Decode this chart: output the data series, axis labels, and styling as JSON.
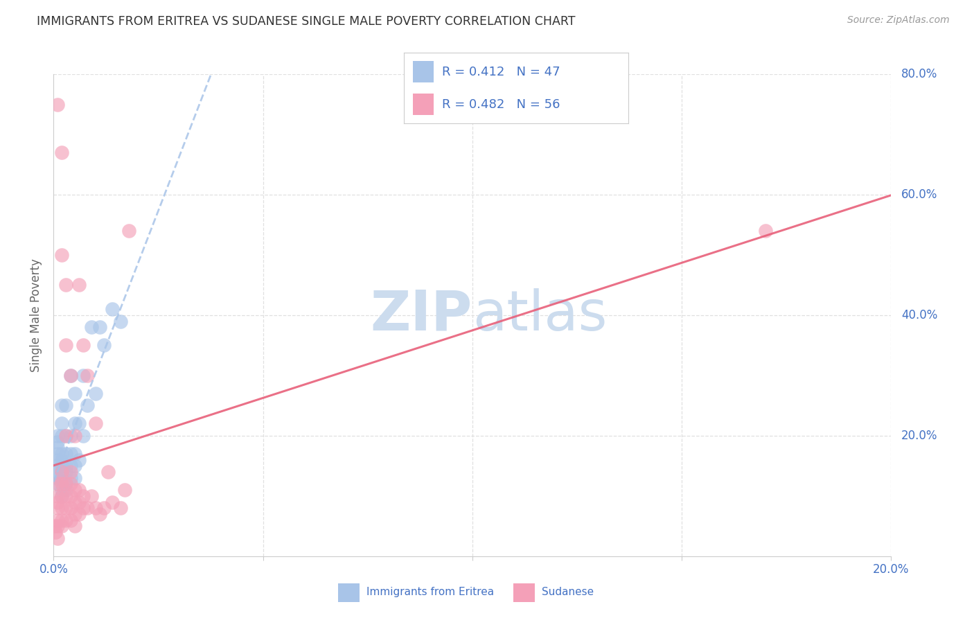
{
  "title": "IMMIGRANTS FROM ERITREA VS SUDANESE SINGLE MALE POVERTY CORRELATION CHART",
  "source": "Source: ZipAtlas.com",
  "ylabel": "Single Male Poverty",
  "legend_eritrea_R": "0.412",
  "legend_eritrea_N": "47",
  "legend_sudanese_R": "0.482",
  "legend_sudanese_N": "56",
  "legend_label_eritrea": "Immigrants from Eritrea",
  "legend_label_sudanese": "Sudanese",
  "color_eritrea": "#a8c4e8",
  "color_sudanese": "#f4a0b8",
  "color_eritrea_line": "#a8c4e8",
  "color_sudanese_line": "#e8607a",
  "color_axis_labels": "#4472c4",
  "color_title": "#333333",
  "color_watermark": "#ccdcee",
  "background_color": "#ffffff",
  "grid_color": "#e0e0e0",
  "xlim": [
    0.0,
    0.2
  ],
  "ylim": [
    0.0,
    0.8
  ],
  "xtick_vals": [
    0.0,
    0.05,
    0.1,
    0.15,
    0.2
  ],
  "xtick_labels": [
    "0.0%",
    "",
    "",
    "",
    "20.0%"
  ],
  "ytick_vals": [
    0.0,
    0.2,
    0.4,
    0.6,
    0.8
  ],
  "yright_labels": [
    "",
    "20.0%",
    "40.0%",
    "60.0%",
    "80.0%"
  ],
  "eritrea_x": [
    0.0005,
    0.001,
    0.001,
    0.001,
    0.001,
    0.001,
    0.001,
    0.001,
    0.001,
    0.002,
    0.002,
    0.002,
    0.002,
    0.002,
    0.002,
    0.002,
    0.002,
    0.002,
    0.002,
    0.003,
    0.003,
    0.003,
    0.003,
    0.003,
    0.003,
    0.003,
    0.004,
    0.004,
    0.004,
    0.004,
    0.004,
    0.005,
    0.005,
    0.005,
    0.005,
    0.005,
    0.006,
    0.006,
    0.007,
    0.007,
    0.008,
    0.009,
    0.01,
    0.011,
    0.012,
    0.014,
    0.016
  ],
  "eritrea_y": [
    0.14,
    0.12,
    0.13,
    0.15,
    0.16,
    0.17,
    0.18,
    0.19,
    0.2,
    0.1,
    0.11,
    0.13,
    0.14,
    0.15,
    0.16,
    0.17,
    0.2,
    0.22,
    0.25,
    0.11,
    0.12,
    0.14,
    0.15,
    0.17,
    0.2,
    0.25,
    0.13,
    0.15,
    0.17,
    0.2,
    0.3,
    0.13,
    0.15,
    0.17,
    0.22,
    0.27,
    0.16,
    0.22,
    0.2,
    0.3,
    0.25,
    0.38,
    0.27,
    0.38,
    0.35,
    0.41,
    0.39
  ],
  "sudanese_x": [
    0.0003,
    0.0005,
    0.001,
    0.001,
    0.001,
    0.001,
    0.001,
    0.001,
    0.001,
    0.001,
    0.002,
    0.002,
    0.002,
    0.002,
    0.002,
    0.002,
    0.002,
    0.002,
    0.003,
    0.003,
    0.003,
    0.003,
    0.003,
    0.003,
    0.003,
    0.004,
    0.004,
    0.004,
    0.004,
    0.004,
    0.004,
    0.005,
    0.005,
    0.005,
    0.005,
    0.005,
    0.006,
    0.006,
    0.006,
    0.006,
    0.007,
    0.007,
    0.007,
    0.008,
    0.008,
    0.009,
    0.01,
    0.01,
    0.011,
    0.012,
    0.013,
    0.014,
    0.016,
    0.017,
    0.018,
    0.17
  ],
  "sudanese_y": [
    0.05,
    0.04,
    0.03,
    0.05,
    0.06,
    0.08,
    0.09,
    0.1,
    0.12,
    0.75,
    0.05,
    0.06,
    0.08,
    0.1,
    0.12,
    0.14,
    0.5,
    0.67,
    0.06,
    0.08,
    0.1,
    0.12,
    0.2,
    0.35,
    0.45,
    0.06,
    0.08,
    0.1,
    0.12,
    0.14,
    0.3,
    0.05,
    0.07,
    0.09,
    0.11,
    0.2,
    0.07,
    0.09,
    0.11,
    0.45,
    0.08,
    0.1,
    0.35,
    0.08,
    0.3,
    0.1,
    0.08,
    0.22,
    0.07,
    0.08,
    0.14,
    0.09,
    0.08,
    0.11,
    0.54,
    0.54
  ]
}
